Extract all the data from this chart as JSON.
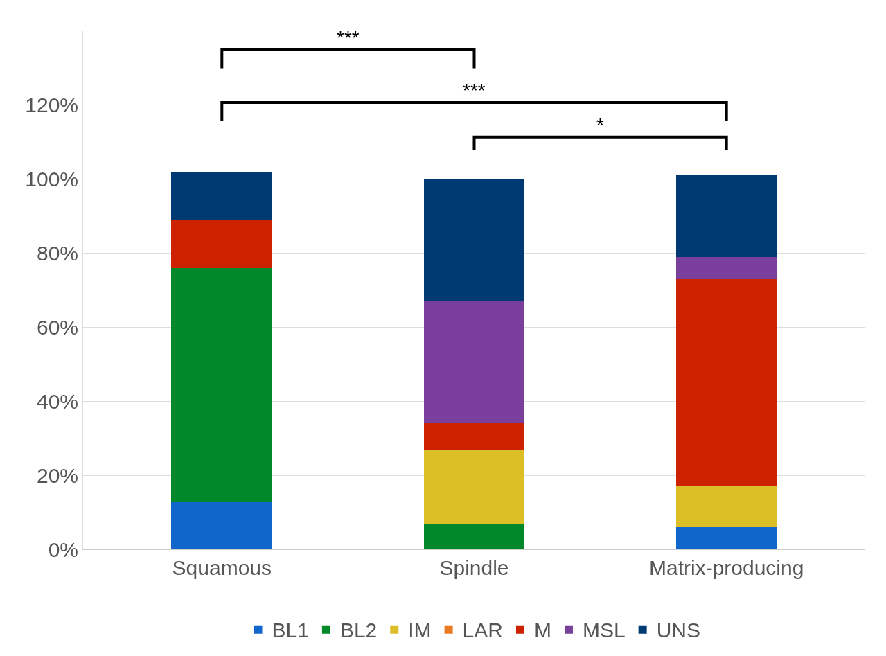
{
  "chart_data": {
    "type": "bar",
    "stacked": true,
    "categories": [
      "Squamous",
      "Spindle",
      "Matrix-producing"
    ],
    "series": [
      {
        "name": "BL1",
        "color": "#1166cc",
        "values": [
          13,
          0,
          6
        ]
      },
      {
        "name": "BL2",
        "color": "#00882a",
        "values": [
          63,
          7,
          0
        ]
      },
      {
        "name": "IM",
        "color": "#dcbf26",
        "values": [
          0,
          20,
          11
        ]
      },
      {
        "name": "LAR",
        "color": "#e87a1f",
        "values": [
          0,
          0,
          0
        ]
      },
      {
        "name": "M",
        "color": "#cc2200",
        "values": [
          13,
          7,
          56
        ]
      },
      {
        "name": "MSL",
        "color": "#7a3f9c",
        "values": [
          0,
          33,
          6
        ]
      },
      {
        "name": "UNS",
        "color": "#003a73",
        "values": [
          13,
          33,
          22
        ]
      }
    ],
    "ylim": [
      0,
      140
    ],
    "yticks": [
      {
        "value": 0,
        "label": "0%"
      },
      {
        "value": 20,
        "label": "20%"
      },
      {
        "value": 40,
        "label": "40%"
      },
      {
        "value": 60,
        "label": "60%"
      },
      {
        "value": 80,
        "label": "80%"
      },
      {
        "value": 100,
        "label": "100%"
      },
      {
        "value": 120,
        "label": "120%"
      }
    ],
    "grid": "y",
    "legend": "bottom",
    "annotations": [
      "***",
      "***",
      "*"
    ]
  }
}
